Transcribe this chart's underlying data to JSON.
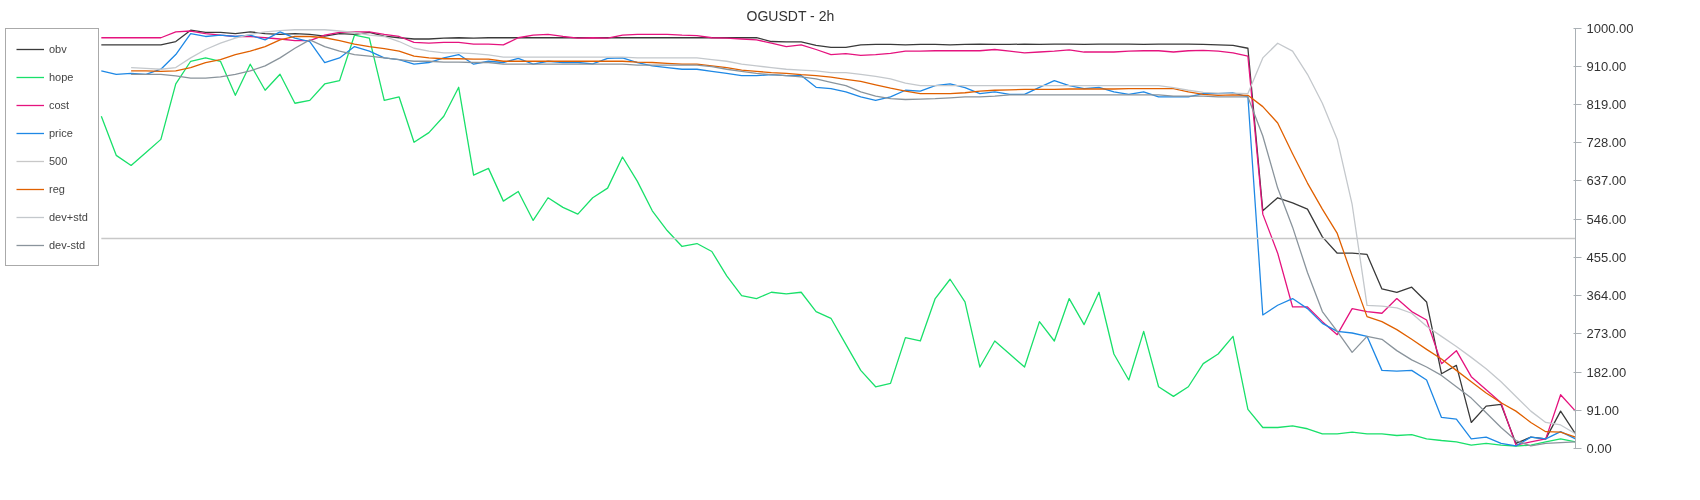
{
  "chart_data": {
    "type": "line",
    "title": "OGUSDT - 2h",
    "categories": [
      null,
      null,
      null,
      null,
      null,
      null,
      null,
      null,
      null,
      null,
      null,
      null,
      null,
      null,
      null,
      null,
      null,
      null,
      null,
      null,
      null,
      null,
      null,
      null,
      null,
      null,
      null,
      null,
      null,
      null,
      null,
      null,
      null,
      null,
      null,
      null,
      null,
      null,
      null,
      null,
      null,
      null,
      null,
      null,
      null,
      null,
      null,
      null,
      null,
      null,
      null,
      null,
      null,
      null,
      null,
      null,
      null,
      null,
      null,
      null,
      null,
      null,
      null,
      null,
      null,
      null,
      null,
      null,
      null,
      null,
      null,
      null,
      null,
      null,
      null,
      null,
      null,
      null,
      null,
      null,
      null,
      null,
      null,
      null,
      null,
      null,
      null,
      null,
      null,
      null,
      null,
      null,
      null,
      null,
      null,
      null,
      null,
      null,
      null,
      null
    ],
    "series": [
      {
        "name": "obv",
        "color": "#3a3a3a",
        "values": [
          961,
          961,
          961,
          961,
          961,
          969,
          996,
          991,
          991,
          988,
          992,
          988,
          986,
          988,
          986,
          982,
          988,
          986,
          991,
          982,
          978,
          975,
          975,
          977,
          978,
          977,
          978,
          978,
          978,
          978,
          978,
          978,
          978,
          978,
          978,
          978,
          978,
          978,
          978,
          978,
          978,
          978,
          978,
          978,
          978,
          969,
          968,
          968,
          960,
          955,
          955,
          961,
          962,
          962,
          961,
          962,
          962,
          961,
          962,
          963,
          962,
          962,
          963,
          962,
          963,
          963,
          962,
          963,
          963,
          963,
          962,
          963,
          963,
          963,
          962,
          961,
          960,
          953,
          566,
          597,
          585,
          570,
          504,
          465,
          465,
          462,
          380,
          372,
          384,
          349,
          178,
          198,
          62,
          101,
          105,
          12,
          27,
          23,
          89,
          35
        ]
      },
      {
        "name": "hope",
        "color": "#19e06a",
        "values": [
          791,
          698,
          674,
          705,
          736,
          868,
          922,
          930,
          922,
          841,
          915,
          853,
          891,
          822,
          829,
          868,
          876,
          984,
          977,
          829,
          837,
          729,
          752,
          791,
          860,
          651,
          667,
          589,
          612,
          543,
          597,
          574,
          558,
          597,
          620,
          694,
          636,
          566,
          519,
          481,
          488,
          469,
          411,
          364,
          357,
          372,
          368,
          372,
          326,
          310,
          248,
          186,
          147,
          155,
          264,
          256,
          357,
          403,
          349,
          194,
          256,
          225,
          194,
          302,
          256,
          357,
          295,
          372,
          225,
          163,
          279,
          147,
          124,
          147,
          202,
          225,
          267,
          93,
          50,
          50,
          54,
          47,
          35,
          35,
          39,
          35,
          35,
          31,
          33,
          23,
          19,
          16,
          8,
          12,
          8,
          6,
          8,
          16,
          23,
          16
        ]
      },
      {
        "name": "cost",
        "color": "#e5137e",
        "values": [
          978,
          978,
          978,
          978,
          978,
          992,
          994,
          988,
          984,
          981,
          981,
          978,
          975,
          971,
          971,
          984,
          991,
          992,
          992,
          986,
          981,
          967,
          965,
          967,
          967,
          963,
          963,
          961,
          978,
          984,
          986,
          981,
          977,
          978,
          977,
          984,
          986,
          986,
          986,
          984,
          983,
          978,
          977,
          975,
          973,
          965,
          957,
          961,
          950,
          938,
          940,
          936,
          938,
          941,
          946,
          946,
          947,
          947,
          947,
          947,
          950,
          946,
          942,
          944,
          946,
          949,
          944,
          944,
          944,
          946,
          947,
          947,
          944,
          947,
          948,
          946,
          942,
          934,
          558,
          465,
          337,
          337,
          302,
          271,
          333,
          326,
          322,
          357,
          326,
          306,
          202,
          233,
          171,
          140,
          109,
          8,
          16,
          23,
          128,
          89
        ]
      },
      {
        "name": "price",
        "color": "#1e88e5",
        "values": [
          899,
          891,
          893,
          891,
          903,
          938,
          988,
          981,
          984,
          981,
          984,
          973,
          992,
          977,
          969,
          919,
          930,
          957,
          946,
          930,
          926,
          915,
          919,
          930,
          938,
          915,
          922,
          919,
          929,
          915,
          922,
          919,
          919,
          916,
          929,
          930,
          919,
          911,
          907,
          903,
          903,
          898,
          893,
          888,
          888,
          890,
          888,
          888,
          860,
          857,
          849,
          837,
          829,
          837,
          853,
          851,
          864,
          868,
          859,
          845,
          849,
          843,
          843,
          860,
          876,
          864,
          857,
          860,
          849,
          843,
          849,
          837,
          837,
          837,
          845,
          845,
          847,
          837,
          318,
          341,
          357,
          333,
          298,
          279,
          275,
          267,
          186,
          184,
          186,
          163,
          74,
          70,
          23,
          27,
          12,
          6,
          27,
          23,
          40,
          23
        ]
      },
      {
        "name": "500",
        "color": "#c8c8c8",
        "values": [
          500,
          500,
          500,
          500,
          500,
          500,
          500,
          500,
          500,
          500,
          500,
          500,
          500,
          500,
          500,
          500,
          500,
          500,
          500,
          500,
          500,
          500,
          500,
          500,
          500,
          500,
          500,
          500,
          500,
          500,
          500,
          500,
          500,
          500,
          500,
          500,
          500,
          500,
          500,
          500,
          500,
          500,
          500,
          500,
          500,
          500,
          500,
          500,
          500,
          500,
          500,
          500,
          500,
          500,
          500,
          500,
          500,
          500,
          500,
          500,
          500,
          500,
          500,
          500,
          500,
          500,
          500,
          500,
          500,
          500,
          500,
          500,
          500,
          500,
          500,
          500,
          500,
          500,
          500,
          500,
          500,
          500,
          500,
          500,
          500,
          500,
          500,
          500,
          500,
          500,
          500,
          500,
          500,
          500,
          500,
          500,
          500,
          500,
          500,
          500
        ]
      },
      {
        "name": "reg",
        "color": "#e06000",
        "values": [
          null,
          null,
          899,
          899,
          898,
          899,
          907,
          919,
          926,
          938,
          946,
          957,
          973,
          981,
          981,
          978,
          971,
          963,
          957,
          952,
          946,
          934,
          930,
          928,
          928,
          927,
          927,
          922,
          922,
          922,
          922,
          922,
          922,
          922,
          922,
          922,
          920,
          919,
          917,
          915,
          915,
          911,
          907,
          901,
          898,
          895,
          893,
          890,
          888,
          884,
          879,
          874,
          866,
          858,
          851,
          845,
          845,
          845,
          847,
          851,
          853,
          854,
          855,
          855,
          855,
          856,
          856,
          856,
          856,
          857,
          857,
          857,
          857,
          849,
          843,
          841,
          842,
          841,
          814,
          775,
          702,
          632,
          570,
          512,
          411,
          314,
          302,
          283,
          260,
          236,
          213,
          186,
          159,
          132,
          109,
          89,
          62,
          40,
          39,
          27
        ]
      },
      {
        "name": "dev+std",
        "color": "#c4c8cc",
        "values": [
          null,
          null,
          907,
          905,
          903,
          907,
          930,
          950,
          965,
          977,
          986,
          992,
          995,
          997,
          997,
          997,
          994,
          991,
          984,
          981,
          969,
          953,
          946,
          942,
          942,
          940,
          937,
          932,
          932,
          932,
          932,
          932,
          932,
          932,
          932,
          932,
          930,
          930,
          930,
          930,
          930,
          926,
          922,
          915,
          911,
          907,
          903,
          901,
          899,
          895,
          895,
          891,
          886,
          880,
          870,
          864,
          864,
          864,
          864,
          864,
          864,
          864,
          864,
          864,
          864,
          864,
          864,
          864,
          864,
          864,
          864,
          864,
          859,
          853,
          848,
          846,
          846,
          845,
          930,
          965,
          946,
          891,
          822,
          736,
          581,
          341,
          339,
          335,
          322,
          291,
          267,
          243,
          217,
          190,
          159,
          124,
          89,
          62,
          56,
          35
        ]
      },
      {
        "name": "dev-std",
        "color": "#8a949c",
        "values": [
          null,
          null,
          891,
          891,
          891,
          887,
          882,
          882,
          885,
          891,
          899,
          911,
          930,
          953,
          973,
          957,
          946,
          938,
          934,
          930,
          926,
          922,
          922,
          920,
          920,
          919,
          919,
          915,
          915,
          915,
          915,
          915,
          915,
          915,
          915,
          915,
          913,
          913,
          913,
          913,
          913,
          909,
          903,
          898,
          893,
          890,
          888,
          885,
          880,
          872,
          864,
          849,
          839,
          833,
          831,
          832,
          833,
          835,
          837,
          837,
          839,
          842,
          842,
          842,
          842,
          842,
          842,
          842,
          842,
          842,
          842,
          842,
          839,
          839,
          839,
          837,
          837,
          837,
          744,
          620,
          527,
          419,
          326,
          279,
          229,
          267,
          260,
          233,
          211,
          194,
          174,
          147,
          120,
          85,
          50,
          19,
          6,
          12,
          14,
          16
        ]
      }
    ],
    "ylim": [
      0,
      1000
    ],
    "yticks": [
      {
        "value": 0,
        "label": "0.00"
      },
      {
        "value": 91,
        "label": "91.00"
      },
      {
        "value": 182,
        "label": "182.00"
      },
      {
        "value": 273,
        "label": "273.00"
      },
      {
        "value": 364,
        "label": "364.00"
      },
      {
        "value": 455,
        "label": "455.00"
      },
      {
        "value": 546,
        "label": "546.00"
      },
      {
        "value": 637,
        "label": "637.00"
      },
      {
        "value": 728,
        "label": "728.00"
      },
      {
        "value": 819,
        "label": "819.00"
      },
      {
        "value": 910,
        "label": "910.00"
      },
      {
        "value": 1000,
        "label": "1000.00"
      }
    ],
    "tick_labels": "y",
    "grid": false,
    "legend": "left"
  }
}
